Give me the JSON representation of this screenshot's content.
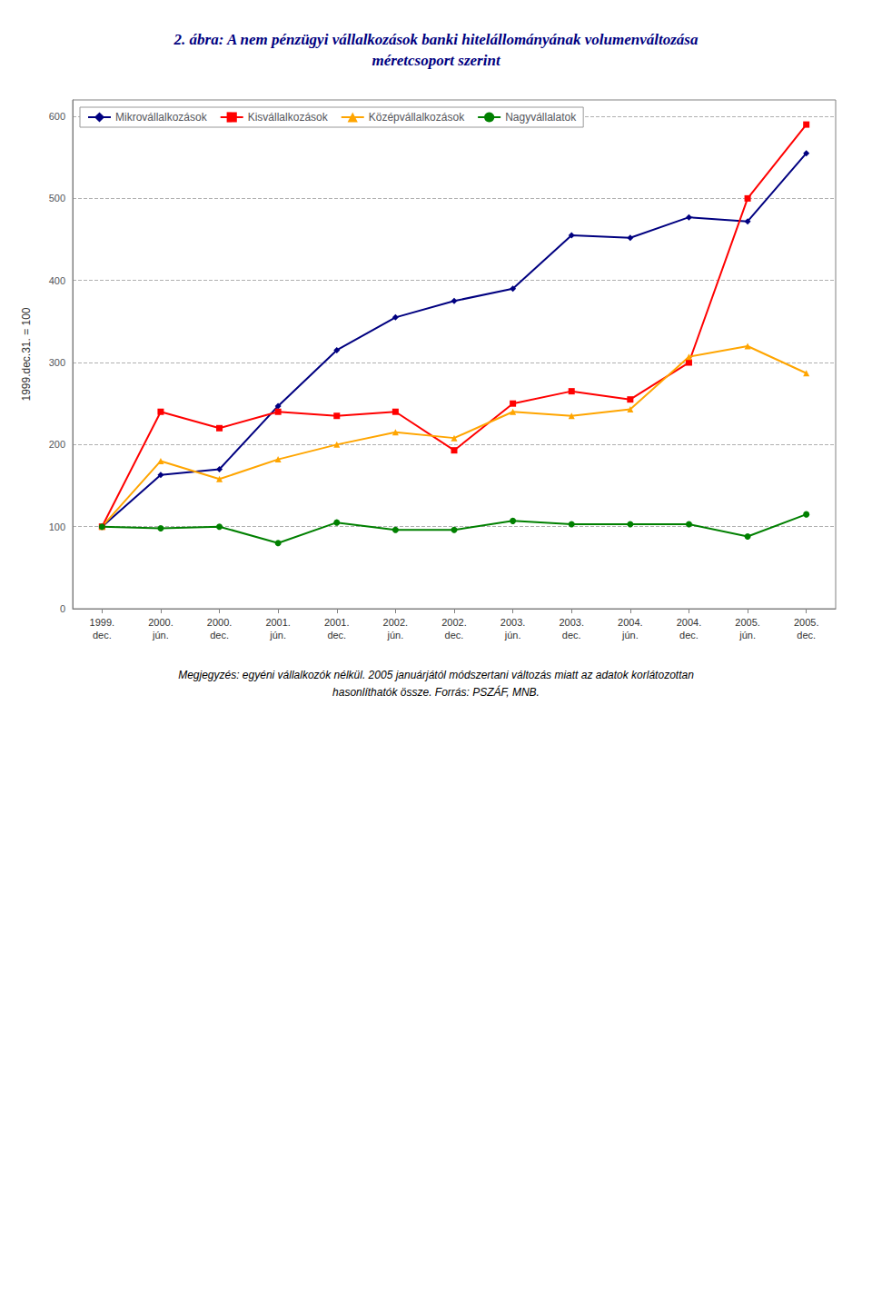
{
  "chart_data": {
    "type": "line",
    "title": "2. ábra: A nem pénzügyi vállalkozások banki hitelállományának volumenváltozása",
    "subtitle": "méretcsoport szerint",
    "ylabel": "1999.dec.31. = 100",
    "annotations": [
      "Megjegyzés: egyéni vállalkozók nélkül. 2005 januárjától módszertani változás miatt az adatok korlátozottan",
      "hasonlíthatók össze. Forrás: PSZÁF, MNB."
    ],
    "categories": [
      "1999.\ndec.",
      "2000.\njún.",
      "2000.\ndec.",
      "2001.\njún.",
      "2001.\ndec.",
      "2002.\njún.",
      "2002.\ndec.",
      "2003.\njún.",
      "2003.\ndec.",
      "2004.\njún.",
      "2004.\ndec.",
      "2005.\njún.",
      "2005.\ndec."
    ],
    "series": [
      {
        "name": "Mikrovállalkozások",
        "color": "#000080",
        "marker": "diamond",
        "values": [
          100,
          163,
          170,
          247,
          315,
          355,
          375,
          390,
          455,
          452,
          477,
          472,
          555
        ]
      },
      {
        "name": "Kisvállalkozások",
        "color": "#ff0000",
        "marker": "square",
        "values": [
          100,
          240,
          220,
          240,
          235,
          240,
          193,
          250,
          265,
          255,
          300,
          500,
          590
        ]
      },
      {
        "name": "Középvállalkozások",
        "color": "#ffa500",
        "marker": "triangle",
        "values": [
          100,
          180,
          158,
          182,
          200,
          215,
          208,
          240,
          235,
          243,
          307,
          320,
          287
        ]
      },
      {
        "name": "Nagyvállalatok",
        "color": "#008000",
        "marker": "circle",
        "values": [
          100,
          98,
          100,
          80,
          105,
          96,
          96,
          107,
          103,
          103,
          103,
          88,
          115
        ]
      }
    ],
    "ylim": [
      0,
      620
    ],
    "yticks": [
      0,
      100,
      200,
      300,
      400,
      500,
      600
    ],
    "grid": true,
    "legend": "upper left"
  }
}
